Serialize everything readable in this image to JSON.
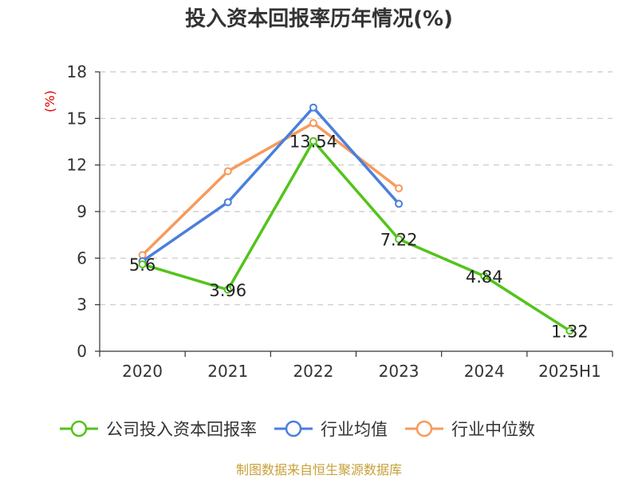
{
  "chart_data": {
    "type": "line",
    "title": "投入资本回报率历年情况(%)",
    "unit_label": "(%)",
    "categories": [
      "2020",
      "2021",
      "2022",
      "2023",
      "2024",
      "2025H1"
    ],
    "ylim": [
      0,
      18
    ],
    "yticks": [
      0,
      3,
      6,
      9,
      12,
      15,
      18
    ],
    "grid": true,
    "legend_position": "bottom",
    "series": [
      {
        "name": "公司投入资本回报率",
        "color": "#52c41a",
        "values": [
          5.6,
          3.96,
          13.54,
          7.22,
          4.84,
          1.32
        ],
        "show_labels": true,
        "labels": [
          "5.6",
          "3.96",
          "13.54",
          "7.22",
          "4.84",
          "1.32"
        ]
      },
      {
        "name": "行业均值",
        "color": "#4a7fdc",
        "values": [
          5.8,
          9.6,
          15.7,
          9.5,
          null,
          null
        ],
        "show_labels": false
      },
      {
        "name": "行业中位数",
        "color": "#f79a5c",
        "values": [
          6.2,
          11.6,
          14.7,
          10.5,
          null,
          null
        ],
        "show_labels": false
      }
    ]
  },
  "footer": {
    "source": "制图数据来自恒生聚源数据库"
  }
}
